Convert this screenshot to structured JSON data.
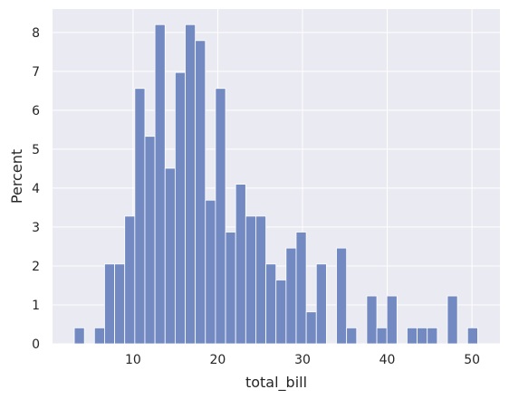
{
  "chart_data": {
    "type": "bar",
    "subtype": "histogram",
    "xlabel": "total_bill",
    "ylabel": "Percent",
    "xlim": [
      0.5,
      53.3
    ],
    "ylim": [
      0,
      8.6
    ],
    "xticks": [
      10,
      20,
      30,
      40,
      50
    ],
    "yticks": [
      0,
      1,
      2,
      3,
      4,
      5,
      6,
      7,
      8
    ],
    "grid": true,
    "bin_start": 3.07,
    "bin_width": 1.19,
    "values": [
      0.41,
      0,
      0.41,
      2.05,
      2.05,
      3.28,
      6.56,
      5.33,
      8.2,
      4.51,
      6.97,
      8.2,
      7.79,
      3.69,
      6.56,
      2.87,
      4.1,
      3.28,
      3.28,
      2.05,
      1.64,
      2.46,
      2.87,
      0.82,
      2.05,
      0,
      2.46,
      0.41,
      0,
      1.23,
      0.41,
      1.23,
      0,
      0.41,
      0.41,
      0.41,
      0,
      1.23,
      0,
      0.41
    ],
    "colors": {
      "bar_fill": "#7289c2",
      "bar_edge": "#ffffff",
      "plot_background": "#eaeaf2",
      "grid": "#ffffff"
    }
  }
}
